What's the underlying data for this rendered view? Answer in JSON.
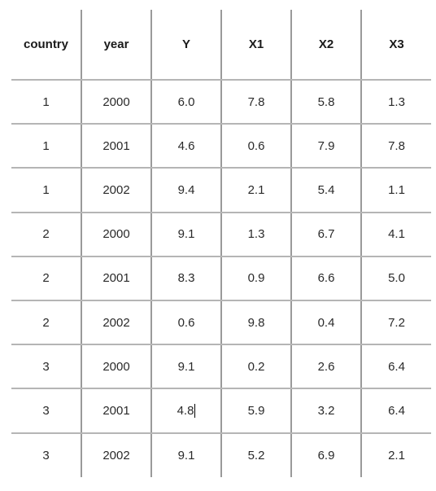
{
  "table": {
    "columns": [
      "country",
      "year",
      "Y",
      "X1",
      "X2",
      "X3"
    ],
    "rows": [
      [
        "1",
        "2000",
        "6.0",
        "7.8",
        "5.8",
        "1.3"
      ],
      [
        "1",
        "2001",
        "4.6",
        "0.6",
        "7.9",
        "7.8"
      ],
      [
        "1",
        "2002",
        "9.4",
        "2.1",
        "5.4",
        "1.1"
      ],
      [
        "2",
        "2000",
        "9.1",
        "1.3",
        "6.7",
        "4.1"
      ],
      [
        "2",
        "2001",
        "8.3",
        "0.9",
        "6.6",
        "5.0"
      ],
      [
        "2",
        "2002",
        "0.6",
        "9.8",
        "0.4",
        "7.2"
      ],
      [
        "3",
        "2000",
        "9.1",
        "0.2",
        "2.6",
        "6.4"
      ],
      [
        "3",
        "2001",
        "4.8",
        "5.9",
        "3.2",
        "6.4"
      ],
      [
        "3",
        "2002",
        "9.1",
        "5.2",
        "6.9",
        "2.1"
      ]
    ]
  }
}
